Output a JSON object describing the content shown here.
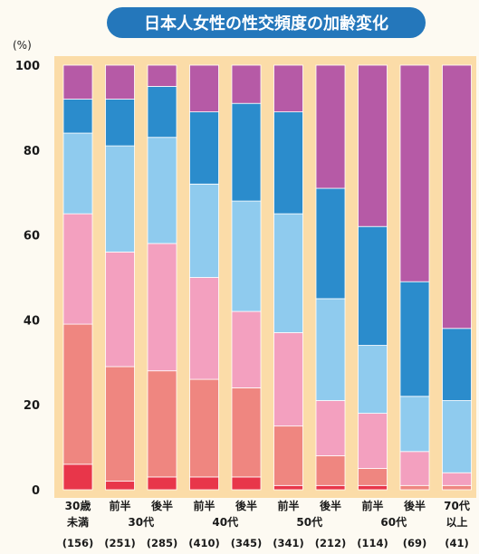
{
  "chart_data": {
    "type": "bar",
    "stacked": true,
    "title": "日本人女性の性交頻度の加齢変化",
    "ylabel": "(%)",
    "ylim": [
      0,
      100
    ],
    "yticks": [
      0,
      20,
      40,
      60,
      80,
      100
    ],
    "categories": [
      {
        "line1": "30歳",
        "line2": "未満",
        "n": "(156)"
      },
      {
        "line1": "前半",
        "line2": "",
        "n": "(251)"
      },
      {
        "line1": "後半",
        "line2": "",
        "n": "(285)"
      },
      {
        "line1": "前半",
        "line2": "",
        "n": "(410)"
      },
      {
        "line1": "後半",
        "line2": "",
        "n": "(345)"
      },
      {
        "line1": "前半",
        "line2": "",
        "n": "(341)"
      },
      {
        "line1": "後半",
        "line2": "",
        "n": "(212)"
      },
      {
        "line1": "前半",
        "line2": "",
        "n": "(114)"
      },
      {
        "line1": "後半",
        "line2": "",
        "n": "(69)"
      },
      {
        "line1": "70代",
        "line2": "以上",
        "n": "(41)"
      }
    ],
    "group_labels": [
      {
        "label": "30代",
        "from": 1,
        "to": 2
      },
      {
        "label": "40代",
        "from": 3,
        "to": 4
      },
      {
        "label": "50代",
        "from": 5,
        "to": 6
      },
      {
        "label": "60代",
        "from": 7,
        "to": 8
      }
    ],
    "colors": [
      "#e8364a",
      "#ef8680",
      "#f3a0bf",
      "#8fcbee",
      "#2b8ccc",
      "#b65aa6"
    ],
    "series": [
      {
        "values": [
          6,
          2,
          3,
          3,
          3,
          1,
          1,
          1,
          0,
          0
        ]
      },
      {
        "values": [
          33,
          27,
          25,
          23,
          21,
          14,
          7,
          4,
          1,
          1
        ]
      },
      {
        "values": [
          26,
          27,
          30,
          24,
          18,
          22,
          13,
          13,
          8,
          3
        ]
      },
      {
        "values": [
          19,
          25,
          25,
          22,
          26,
          28,
          24,
          16,
          13,
          17
        ]
      },
      {
        "values": [
          8,
          11,
          12,
          17,
          23,
          24,
          26,
          28,
          27,
          17
        ]
      },
      {
        "values": [
          8,
          8,
          5,
          11,
          9,
          11,
          29,
          38,
          51,
          62
        ]
      }
    ]
  }
}
